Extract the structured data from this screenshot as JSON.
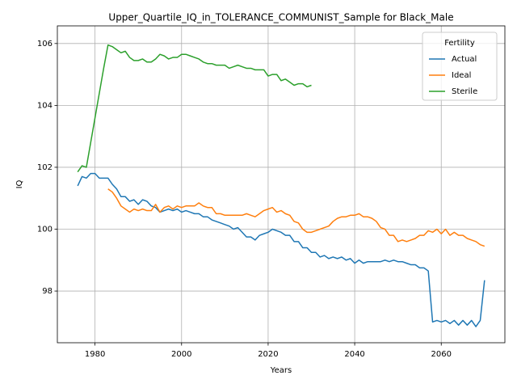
{
  "chart_data": {
    "type": "line",
    "title": "Upper_Quartile_IQ_in_TOLERANCE_COMMUNIST_Sample for Black_Male",
    "x_label": "Years",
    "y_label": "IQ",
    "x": [
      1976,
      1977,
      1978,
      1979,
      1980,
      1981,
      1982,
      1983,
      1984,
      1985,
      1986,
      1987,
      1988,
      1989,
      1990,
      1991,
      1992,
      1993,
      1994,
      1995,
      1996,
      1997,
      1998,
      1999,
      2000,
      2001,
      2002,
      2003,
      2004,
      2005,
      2006,
      2007,
      2008,
      2009,
      2010,
      2011,
      2012,
      2013,
      2014,
      2015,
      2016,
      2017,
      2018,
      2019,
      2020,
      2021,
      2022,
      2023,
      2024,
      2025,
      2026,
      2027,
      2028,
      2029,
      2030,
      2031,
      2032,
      2033,
      2034,
      2035,
      2036,
      2037,
      2038,
      2039,
      2040,
      2041,
      2042,
      2043,
      2044,
      2045,
      2046,
      2047,
      2048,
      2049,
      2050,
      2051,
      2052,
      2053,
      2054,
      2055,
      2056,
      2057,
      2058,
      2059,
      2060,
      2061,
      2062,
      2063,
      2064,
      2065,
      2066,
      2067,
      2068,
      2069,
      2070
    ],
    "series": [
      {
        "name": "Actual",
        "color": "#1f77b4",
        "values": [
          101.4,
          101.7,
          101.65,
          101.8,
          101.8,
          101.65,
          101.65,
          101.65,
          101.45,
          101.3,
          101.05,
          101.05,
          100.9,
          100.95,
          100.8,
          100.95,
          100.9,
          100.75,
          100.7,
          100.55,
          100.6,
          100.65,
          100.6,
          100.65,
          100.55,
          100.6,
          100.55,
          100.5,
          100.5,
          100.4,
          100.4,
          100.3,
          100.25,
          100.2,
          100.15,
          100.1,
          100.0,
          100.05,
          99.9,
          99.75,
          99.75,
          99.65,
          99.8,
          99.85,
          99.9,
          100.0,
          99.95,
          99.9,
          99.8,
          99.8,
          99.6,
          99.6,
          99.4,
          99.4,
          99.25,
          99.25,
          99.1,
          99.15,
          99.05,
          99.1,
          99.05,
          99.1,
          99.0,
          99.05,
          98.9,
          99.0,
          98.9,
          98.95,
          98.95,
          98.95,
          98.95,
          99.0,
          98.95,
          99.0,
          98.95,
          98.95,
          98.9,
          98.85,
          98.85,
          98.75,
          98.75,
          98.65,
          97.0,
          97.05,
          97.0,
          97.05,
          96.95,
          97.05,
          96.9,
          97.05,
          96.9,
          97.05,
          96.85,
          97.05,
          98.35
        ]
      },
      {
        "name": "Ideal",
        "color": "#ff7f0e",
        "values": [
          null,
          null,
          null,
          null,
          null,
          null,
          null,
          101.3,
          101.2,
          101.0,
          100.75,
          100.65,
          100.55,
          100.65,
          100.6,
          100.65,
          100.6,
          100.6,
          100.8,
          100.55,
          100.7,
          100.75,
          100.65,
          100.75,
          100.7,
          100.75,
          100.75,
          100.75,
          100.85,
          100.75,
          100.7,
          100.7,
          100.5,
          100.5,
          100.45,
          100.45,
          100.45,
          100.45,
          100.45,
          100.5,
          100.45,
          100.4,
          100.5,
          100.6,
          100.65,
          100.7,
          100.55,
          100.6,
          100.5,
          100.45,
          100.25,
          100.2,
          100.0,
          99.9,
          99.9,
          99.95,
          100.0,
          100.05,
          100.1,
          100.25,
          100.35,
          100.4,
          100.4,
          100.45,
          100.45,
          100.5,
          100.4,
          100.4,
          100.35,
          100.25,
          100.05,
          100.0,
          99.8,
          99.8,
          99.6,
          99.65,
          99.6,
          99.65,
          99.7,
          99.8,
          99.8,
          99.95,
          99.9,
          100.0,
          99.85,
          100.0,
          99.8,
          99.9,
          99.8,
          99.8,
          99.7,
          99.65,
          99.6,
          99.5,
          99.45
        ]
      },
      {
        "name": "Sterile",
        "color": "#2ca02c",
        "values": [
          101.85,
          102.05,
          102.0,
          102.8,
          103.6,
          104.4,
          105.2,
          105.95,
          105.9,
          105.8,
          105.7,
          105.75,
          105.55,
          105.45,
          105.45,
          105.5,
          105.4,
          105.4,
          105.5,
          105.65,
          105.6,
          105.5,
          105.55,
          105.55,
          105.65,
          105.65,
          105.6,
          105.55,
          105.5,
          105.4,
          105.35,
          105.35,
          105.3,
          105.3,
          105.3,
          105.2,
          105.25,
          105.3,
          105.25,
          105.2,
          105.2,
          105.15,
          105.15,
          105.15,
          104.95,
          105.0,
          105.0,
          104.8,
          104.85,
          104.75,
          104.65,
          104.7,
          104.7,
          104.6,
          104.65,
          null,
          null,
          null,
          null,
          null,
          null,
          null,
          null,
          null,
          null,
          null,
          null,
          null,
          null,
          null,
          null,
          null,
          null,
          null,
          null,
          null,
          null,
          null,
          null,
          null,
          null,
          null,
          null,
          null,
          null,
          null,
          null,
          null,
          null,
          null,
          null,
          null,
          null,
          null,
          null
        ]
      }
    ],
    "xlim": [
      1971.3,
      2074.7
    ],
    "ylim": [
      96.33,
      106.57
    ],
    "xticks": [
      1980,
      2000,
      2020,
      2040,
      2060
    ],
    "yticks": [
      98,
      100,
      102,
      104,
      106
    ],
    "grid": true,
    "legend_title": "Fertility",
    "legend_position": "upper right"
  }
}
